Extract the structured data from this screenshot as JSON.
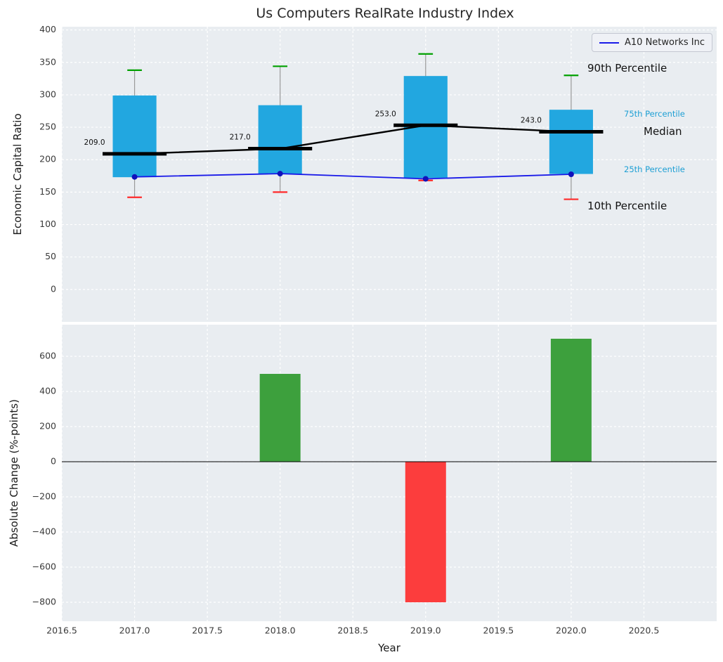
{
  "title": "Us Computers RealRate Industry Index",
  "legend": {
    "series_label": "A10 Networks Inc"
  },
  "axes": {
    "top_ylabel": "Economic Capital Ratio",
    "bottom_ylabel": "Absolute Change (%-points)",
    "xlabel": "Year"
  },
  "annotations": {
    "p90_label": "90th Percentile",
    "p75_label": "75th Percentile",
    "median_label": "Median",
    "p25_label": "25th Percentile",
    "p10_label": "10th Percentile"
  },
  "colors": {
    "box_fill": "#22a7e0",
    "percentile_text": "#1d9fd4",
    "cap_90": "#00a000",
    "cap_10": "#ff2a2a",
    "median_line": "#000000",
    "company_line": "#1a1ae8",
    "company_marker": "#1111bb",
    "bar_positive": "#3da03d",
    "bar_negative": "#fc3d3d",
    "whisker": "#999999",
    "plot_bg": "#e9edf1",
    "grid": "#ffffff",
    "tick_text": "#3a3a3a"
  },
  "chart_data": [
    {
      "type": "boxplot",
      "title": "Us Computers RealRate Industry Index",
      "ylabel": "Economic Capital Ratio",
      "xlim": [
        2016.5,
        2021.0
      ],
      "ylim": [
        -50,
        405
      ],
      "yticks": [
        0,
        50,
        100,
        150,
        200,
        250,
        300,
        350,
        400
      ],
      "grid": true,
      "legend_position": "upper right",
      "years": [
        2017,
        2018,
        2019,
        2020
      ],
      "boxes": [
        {
          "year": 2017,
          "p10": 142,
          "p25": 173,
          "median": 209.0,
          "p75": 299,
          "p90": 338
        },
        {
          "year": 2018,
          "p10": 150,
          "p25": 178,
          "median": 217.0,
          "p75": 284,
          "p90": 344
        },
        {
          "year": 2019,
          "p10": 168,
          "p25": 172,
          "median": 253.0,
          "p75": 329,
          "p90": 363
        },
        {
          "year": 2020,
          "p10": 139,
          "p25": 178,
          "median": 243.0,
          "p75": 277,
          "p90": 330
        }
      ],
      "median_value_labels": [
        "209.0",
        "217.0",
        "253.0",
        "243.0"
      ],
      "series": [
        {
          "name": "A10 Networks Inc",
          "x": [
            2017,
            2018,
            2019,
            2020
          ],
          "values": [
            173.5,
            178.5,
            170.5,
            177.5
          ]
        }
      ]
    },
    {
      "type": "bar",
      "ylabel": "Absolute Change (%-points)",
      "xlabel": "Year",
      "xlim": [
        2016.5,
        2021.0
      ],
      "ylim": [
        -908,
        780
      ],
      "yticks": [
        -800,
        -600,
        -400,
        -200,
        0,
        200,
        400,
        600
      ],
      "xticks": [
        2016.5,
        2017.0,
        2017.5,
        2018.0,
        2018.5,
        2019.0,
        2019.5,
        2020.0,
        2020.5
      ],
      "xtick_labels": [
        "2016.5",
        "2017.0",
        "2017.5",
        "2018.0",
        "2018.5",
        "2019.0",
        "2019.5",
        "2020.0",
        "2020.5"
      ],
      "categories": [
        2017,
        2018,
        2019,
        2020
      ],
      "values": [
        0,
        500,
        -800,
        700
      ],
      "grid": true
    }
  ]
}
